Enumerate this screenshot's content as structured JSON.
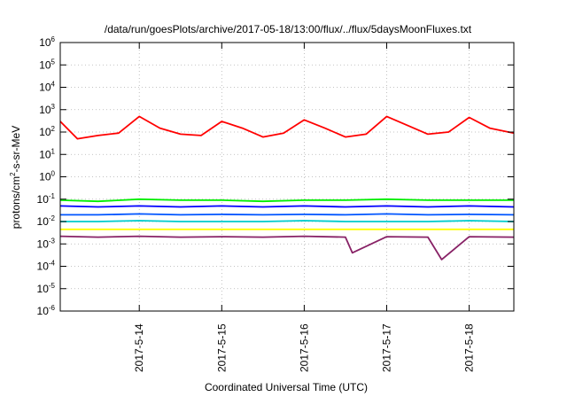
{
  "chart_data": {
    "type": "line",
    "title": "/data/run/goesPlots/archive/2017-05-18/13:00/flux/../flux/5daysMoonFluxes.txt",
    "xlabel": "Coordinated Universal Time (UTC)",
    "ylabel_parts": [
      "protons/cm",
      "2",
      "-s-sr-MeV"
    ],
    "x_range": [
      "2017-05-13T01:00",
      "2017-05-18T13:00"
    ],
    "y_scale": "log",
    "ylim": [
      1e-06,
      1000000.0
    ],
    "grid": true,
    "legend": "none",
    "x_ticks": [
      {
        "label": "2017-5-14",
        "at": "2017-05-14T00:00"
      },
      {
        "label": "2017-5-15",
        "at": "2017-05-15T00:00"
      },
      {
        "label": "2017-5-16",
        "at": "2017-05-16T00:00"
      },
      {
        "label": "2017-5-17",
        "at": "2017-05-17T00:00"
      },
      {
        "label": "2017-5-18",
        "at": "2017-05-18T00:00"
      }
    ],
    "y_ticks": [
      {
        "base": "10",
        "exp": "-6",
        "value": 1e-06
      },
      {
        "base": "10",
        "exp": "-5",
        "value": 1e-05
      },
      {
        "base": "10",
        "exp": "-4",
        "value": 0.0001
      },
      {
        "base": "10",
        "exp": "-3",
        "value": 0.001
      },
      {
        "base": "10",
        "exp": "-2",
        "value": 0.01
      },
      {
        "base": "10",
        "exp": "-1",
        "value": 0.1
      },
      {
        "base": "10",
        "exp": "0",
        "value": 1
      },
      {
        "base": "10",
        "exp": "1",
        "value": 10
      },
      {
        "base": "10",
        "exp": "2",
        "value": 100
      },
      {
        "base": "10",
        "exp": "3",
        "value": 1000
      },
      {
        "base": "10",
        "exp": "4",
        "value": 10000
      },
      {
        "base": "10",
        "exp": "5",
        "value": 100000
      },
      {
        "base": "10",
        "exp": "6",
        "value": 1000000
      }
    ],
    "series": [
      {
        "color": "#ff0000",
        "x": [
          "2017-05-13T01:00",
          "2017-05-13T06:00",
          "2017-05-13T12:00",
          "2017-05-13T18:00",
          "2017-05-14T00:00",
          "2017-05-14T06:00",
          "2017-05-14T12:00",
          "2017-05-14T18:00",
          "2017-05-15T00:00",
          "2017-05-15T06:00",
          "2017-05-15T12:00",
          "2017-05-15T18:00",
          "2017-05-16T00:00",
          "2017-05-16T06:00",
          "2017-05-16T12:00",
          "2017-05-16T18:00",
          "2017-05-17T00:00",
          "2017-05-17T06:00",
          "2017-05-17T12:00",
          "2017-05-17T18:00",
          "2017-05-18T00:00",
          "2017-05-18T06:00",
          "2017-05-18T13:00"
        ],
        "values": [
          300,
          50,
          70,
          90,
          500,
          150,
          80,
          70,
          300,
          150,
          60,
          90,
          350,
          150,
          60,
          80,
          500,
          200,
          80,
          100,
          450,
          150,
          90
        ]
      },
      {
        "color": "#00ee00",
        "x": [
          "2017-05-13T01:00",
          "2017-05-13T12:00",
          "2017-05-14T00:00",
          "2017-05-14T12:00",
          "2017-05-15T00:00",
          "2017-05-15T12:00",
          "2017-05-16T00:00",
          "2017-05-16T12:00",
          "2017-05-17T00:00",
          "2017-05-17T12:00",
          "2017-05-18T00:00",
          "2017-05-18T13:00"
        ],
        "values": [
          0.09,
          0.08,
          0.1,
          0.09,
          0.09,
          0.08,
          0.09,
          0.09,
          0.1,
          0.09,
          0.09,
          0.09
        ]
      },
      {
        "color": "#0000ff",
        "x": [
          "2017-05-13T01:00",
          "2017-05-13T12:00",
          "2017-05-14T00:00",
          "2017-05-14T12:00",
          "2017-05-15T00:00",
          "2017-05-15T12:00",
          "2017-05-16T00:00",
          "2017-05-16T12:00",
          "2017-05-17T00:00",
          "2017-05-17T12:00",
          "2017-05-18T00:00",
          "2017-05-18T13:00"
        ],
        "values": [
          0.05,
          0.045,
          0.05,
          0.045,
          0.05,
          0.045,
          0.05,
          0.045,
          0.05,
          0.045,
          0.05,
          0.045
        ]
      },
      {
        "color": "#0055ff",
        "x": [
          "2017-05-13T01:00",
          "2017-05-13T12:00",
          "2017-05-14T00:00",
          "2017-05-14T12:00",
          "2017-05-15T00:00",
          "2017-05-15T12:00",
          "2017-05-16T00:00",
          "2017-05-16T12:00",
          "2017-05-17T00:00",
          "2017-05-17T12:00",
          "2017-05-18T00:00",
          "2017-05-18T13:00"
        ],
        "values": [
          0.02,
          0.02,
          0.022,
          0.02,
          0.021,
          0.02,
          0.021,
          0.02,
          0.022,
          0.02,
          0.021,
          0.02
        ]
      },
      {
        "color": "#00cccc",
        "x": [
          "2017-05-13T01:00",
          "2017-05-13T12:00",
          "2017-05-14T00:00",
          "2017-05-14T12:00",
          "2017-05-15T00:00",
          "2017-05-15T12:00",
          "2017-05-16T00:00",
          "2017-05-16T12:00",
          "2017-05-17T00:00",
          "2017-05-17T12:00",
          "2017-05-18T00:00",
          "2017-05-18T13:00"
        ],
        "values": [
          0.01,
          0.01,
          0.011,
          0.01,
          0.01,
          0.01,
          0.011,
          0.01,
          0.01,
          0.01,
          0.011,
          0.01
        ]
      },
      {
        "color": "#ffff00",
        "x": [
          "2017-05-13T01:00",
          "2017-05-18T13:00"
        ],
        "values": [
          0.0045,
          0.0045
        ]
      },
      {
        "color": "#882266",
        "x": [
          "2017-05-13T01:00",
          "2017-05-13T12:00",
          "2017-05-14T00:00",
          "2017-05-14T12:00",
          "2017-05-15T00:00",
          "2017-05-15T12:00",
          "2017-05-16T00:00",
          "2017-05-16T12:00",
          "2017-05-16T14:00",
          "2017-05-17T00:00",
          "2017-05-17T12:00",
          "2017-05-17T16:00",
          "2017-05-18T00:00",
          "2017-05-18T13:00"
        ],
        "values": [
          0.0022,
          0.002,
          0.0022,
          0.002,
          0.0021,
          0.002,
          0.0022,
          0.002,
          0.0004,
          0.0021,
          0.002,
          0.0002,
          0.0021,
          0.002
        ]
      }
    ]
  }
}
